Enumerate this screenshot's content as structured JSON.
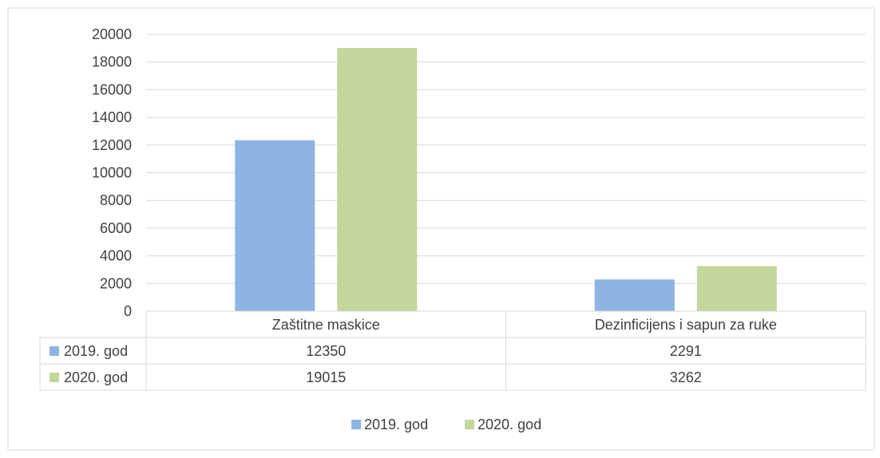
{
  "chart_data": {
    "type": "bar",
    "title": "",
    "xlabel": "",
    "ylabel": "",
    "categories": [
      "Zaštitne maskice",
      "Dezinficijens i sapun za ruke"
    ],
    "series": [
      {
        "name": "2019. god",
        "values": [
          12350,
          2291
        ],
        "color": "#8eb4e3"
      },
      {
        "name": "2020. god",
        "values": [
          19015,
          3262
        ],
        "color": "#c3d69b"
      }
    ],
    "yticks": [
      "0",
      "2000",
      "4000",
      "6000",
      "8000",
      "10000",
      "12000",
      "14000",
      "16000",
      "18000",
      "20000"
    ],
    "ylim": [
      0,
      20000
    ],
    "grid": true,
    "data_table": true,
    "legend_position": "bottom"
  }
}
